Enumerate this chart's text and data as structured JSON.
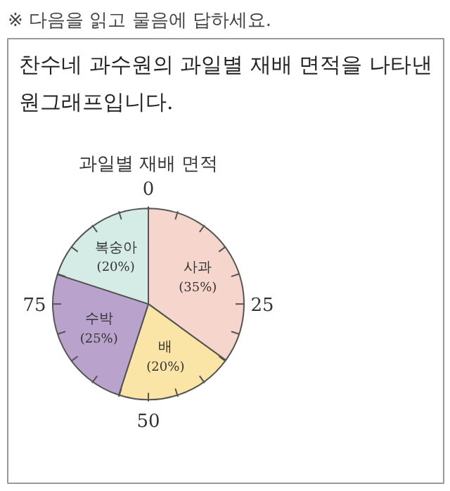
{
  "chart_data": {
    "type": "pie",
    "title": "과일별 재배 면적",
    "subtitle": "찬수네 과수원의 과일별 재배 면적을 나타낸 원그래프입니다.",
    "annotations": [
      "※ 다음을 읽고 물음에 답하세요.",
      {
        "text": "0"
      },
      {
        "text": "25"
      },
      {
        "text": "50"
      },
      {
        "text": "75"
      }
    ],
    "categories": [
      "사과",
      "배",
      "수박",
      "복숭아"
    ],
    "values": [
      35,
      20,
      25,
      20
    ],
    "value_labels": [
      "(35%)",
      "(20%)",
      "(25%)",
      "(20%)"
    ],
    "colors": [
      "#f6d6cc",
      "#fae4a6",
      "#b9a2cb",
      "#d5ebe5"
    ]
  }
}
